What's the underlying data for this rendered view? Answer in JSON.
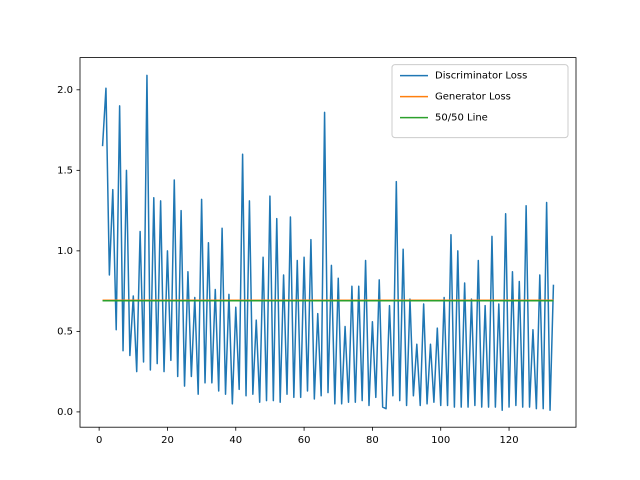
{
  "chart_data": {
    "type": "line",
    "xlim": [
      -5.6,
      139.6
    ],
    "ylim": [
      -0.095,
      2.2
    ],
    "xticks": [
      0,
      20,
      40,
      60,
      80,
      100,
      120
    ],
    "yticks": [
      {
        "value": 0,
        "label": "0.0"
      },
      0.5,
      {
        "value": 1,
        "label": "1.0"
      },
      1.5,
      {
        "value": 2,
        "label": "2.0"
      }
    ],
    "legend": "upper right",
    "series": [
      {
        "name": "Discriminator Loss",
        "color": "#1f77b4",
        "x": [
          1,
          2,
          3,
          4,
          5,
          6,
          7,
          8,
          9,
          10,
          11,
          12,
          13,
          14,
          15,
          16,
          17,
          18,
          19,
          20,
          21,
          22,
          23,
          24,
          25,
          26,
          27,
          28,
          29,
          30,
          31,
          32,
          33,
          34,
          35,
          36,
          37,
          38,
          39,
          40,
          41,
          42,
          43,
          44,
          45,
          46,
          47,
          48,
          49,
          50,
          51,
          52,
          53,
          54,
          55,
          56,
          57,
          58,
          59,
          60,
          61,
          62,
          63,
          64,
          65,
          66,
          67,
          68,
          69,
          70,
          71,
          72,
          73,
          74,
          75,
          76,
          77,
          78,
          79,
          80,
          81,
          82,
          83,
          84,
          85,
          86,
          87,
          88,
          89,
          90,
          91,
          92,
          93,
          94,
          95,
          96,
          97,
          98,
          99,
          100,
          101,
          102,
          103,
          104,
          105,
          106,
          107,
          108,
          109,
          110,
          111,
          112,
          113,
          114,
          115,
          116,
          117,
          118,
          119,
          120,
          121,
          122,
          123,
          124,
          125,
          126,
          127,
          128,
          129,
          130,
          131,
          132,
          133
        ],
        "values": [
          1.65,
          2.01,
          0.85,
          1.38,
          0.51,
          1.9,
          0.38,
          1.5,
          0.35,
          0.72,
          0.25,
          1.12,
          0.31,
          2.09,
          0.26,
          1.33,
          0.3,
          1.31,
          0.25,
          1.0,
          0.32,
          1.44,
          0.22,
          1.25,
          0.16,
          0.87,
          0.22,
          0.71,
          0.11,
          1.32,
          0.18,
          1.05,
          0.18,
          0.76,
          0.13,
          1.14,
          0.11,
          0.73,
          0.05,
          0.65,
          0.14,
          1.6,
          0.1,
          1.31,
          0.11,
          0.57,
          0.06,
          0.96,
          0.07,
          1.34,
          0.07,
          1.2,
          0.06,
          0.85,
          0.11,
          1.21,
          0.09,
          0.94,
          0.09,
          0.96,
          0.13,
          1.07,
          0.08,
          0.61,
          0.1,
          1.86,
          0.12,
          0.91,
          0.05,
          0.83,
          0.05,
          0.53,
          0.06,
          0.78,
          0.06,
          0.78,
          0.07,
          0.94,
          0.04,
          0.56,
          0.09,
          0.82,
          0.03,
          0.02,
          0.66,
          0.1,
          1.43,
          0.07,
          1.01,
          0.04,
          0.7,
          0.1,
          0.42,
          0.04,
          0.67,
          0.05,
          0.42,
          0.06,
          0.52,
          0.04,
          0.71,
          0.04,
          1.1,
          0.03,
          1.0,
          0.03,
          0.8,
          0.03,
          0.7,
          0.04,
          0.94,
          0.03,
          0.66,
          0.03,
          1.09,
          0.03,
          0.67,
          0.01,
          1.23,
          0.03,
          0.87,
          0.04,
          0.81,
          0.03,
          1.28,
          0.03,
          0.51,
          0.02,
          0.85,
          0.02,
          1.3,
          0.01,
          0.79
        ]
      },
      {
        "name": "Generator Loss",
        "color": "#ff7f0e",
        "x": [
          1,
          2,
          3,
          4,
          5,
          6,
          7,
          8,
          9,
          10,
          11,
          12,
          13,
          14,
          15,
          16,
          17,
          18,
          19,
          20,
          21,
          22,
          23,
          24,
          25,
          26,
          27,
          28,
          29,
          30,
          31,
          32,
          33,
          34,
          35,
          36,
          37,
          38,
          39,
          40,
          41,
          42,
          43,
          44,
          45,
          46,
          47,
          48,
          49,
          50,
          51,
          52,
          53,
          54,
          55,
          56,
          57,
          58,
          59,
          60,
          61,
          62,
          63,
          64,
          65,
          66,
          67,
          68,
          69,
          70,
          71,
          72,
          73,
          74,
          75,
          76,
          77,
          78,
          79,
          80,
          81,
          82,
          83,
          84,
          85,
          86,
          87,
          88,
          89,
          90,
          91,
          92,
          93,
          94,
          95,
          96,
          97,
          98,
          99,
          100,
          101,
          102,
          103,
          104,
          105,
          106,
          107,
          108,
          109,
          110,
          111,
          112,
          113,
          114,
          115,
          116,
          117,
          118,
          119,
          120,
          121,
          122,
          123,
          124,
          125,
          126,
          127,
          128,
          129,
          130,
          131,
          132,
          133
        ],
        "values": [
          0.693,
          0.693,
          0.693,
          0.693,
          0.693,
          0.693,
          0.693,
          0.693,
          0.693,
          0.693,
          0.693,
          0.693,
          0.693,
          0.693,
          0.693,
          0.693,
          0.693,
          0.693,
          0.693,
          0.693,
          0.693,
          0.693,
          0.693,
          0.693,
          0.693,
          0.693,
          0.693,
          0.693,
          0.693,
          0.693,
          0.693,
          0.693,
          0.693,
          0.693,
          0.693,
          0.693,
          0.693,
          0.693,
          0.693,
          0.693,
          0.693,
          0.693,
          0.693,
          0.693,
          0.693,
          0.693,
          0.693,
          0.693,
          0.693,
          0.693,
          0.693,
          0.693,
          0.693,
          0.693,
          0.693,
          0.693,
          0.693,
          0.693,
          0.693,
          0.693,
          0.693,
          0.693,
          0.693,
          0.693,
          0.693,
          0.693,
          0.693,
          0.693,
          0.693,
          0.693,
          0.693,
          0.693,
          0.693,
          0.693,
          0.693,
          0.693,
          0.693,
          0.693,
          0.693,
          0.693,
          0.693,
          0.693,
          0.693,
          0.693,
          0.693,
          0.693,
          0.693,
          0.693,
          0.693,
          0.693,
          0.693,
          0.693,
          0.693,
          0.693,
          0.693,
          0.693,
          0.693,
          0.693,
          0.693,
          0.693,
          0.693,
          0.693,
          0.693,
          0.693,
          0.693,
          0.693,
          0.693,
          0.693,
          0.693,
          0.693,
          0.693,
          0.693,
          0.693,
          0.693,
          0.693,
          0.693,
          0.693,
          0.693,
          0.693,
          0.693,
          0.693,
          0.693,
          0.693,
          0.693,
          0.693,
          0.693,
          0.693,
          0.693,
          0.693,
          0.693,
          0.693,
          0.693,
          0.693
        ]
      },
      {
        "name": "50/50 Line",
        "color": "#2ca02c",
        "x": [
          1,
          133
        ],
        "values": [
          0.69,
          0.69
        ]
      }
    ]
  }
}
